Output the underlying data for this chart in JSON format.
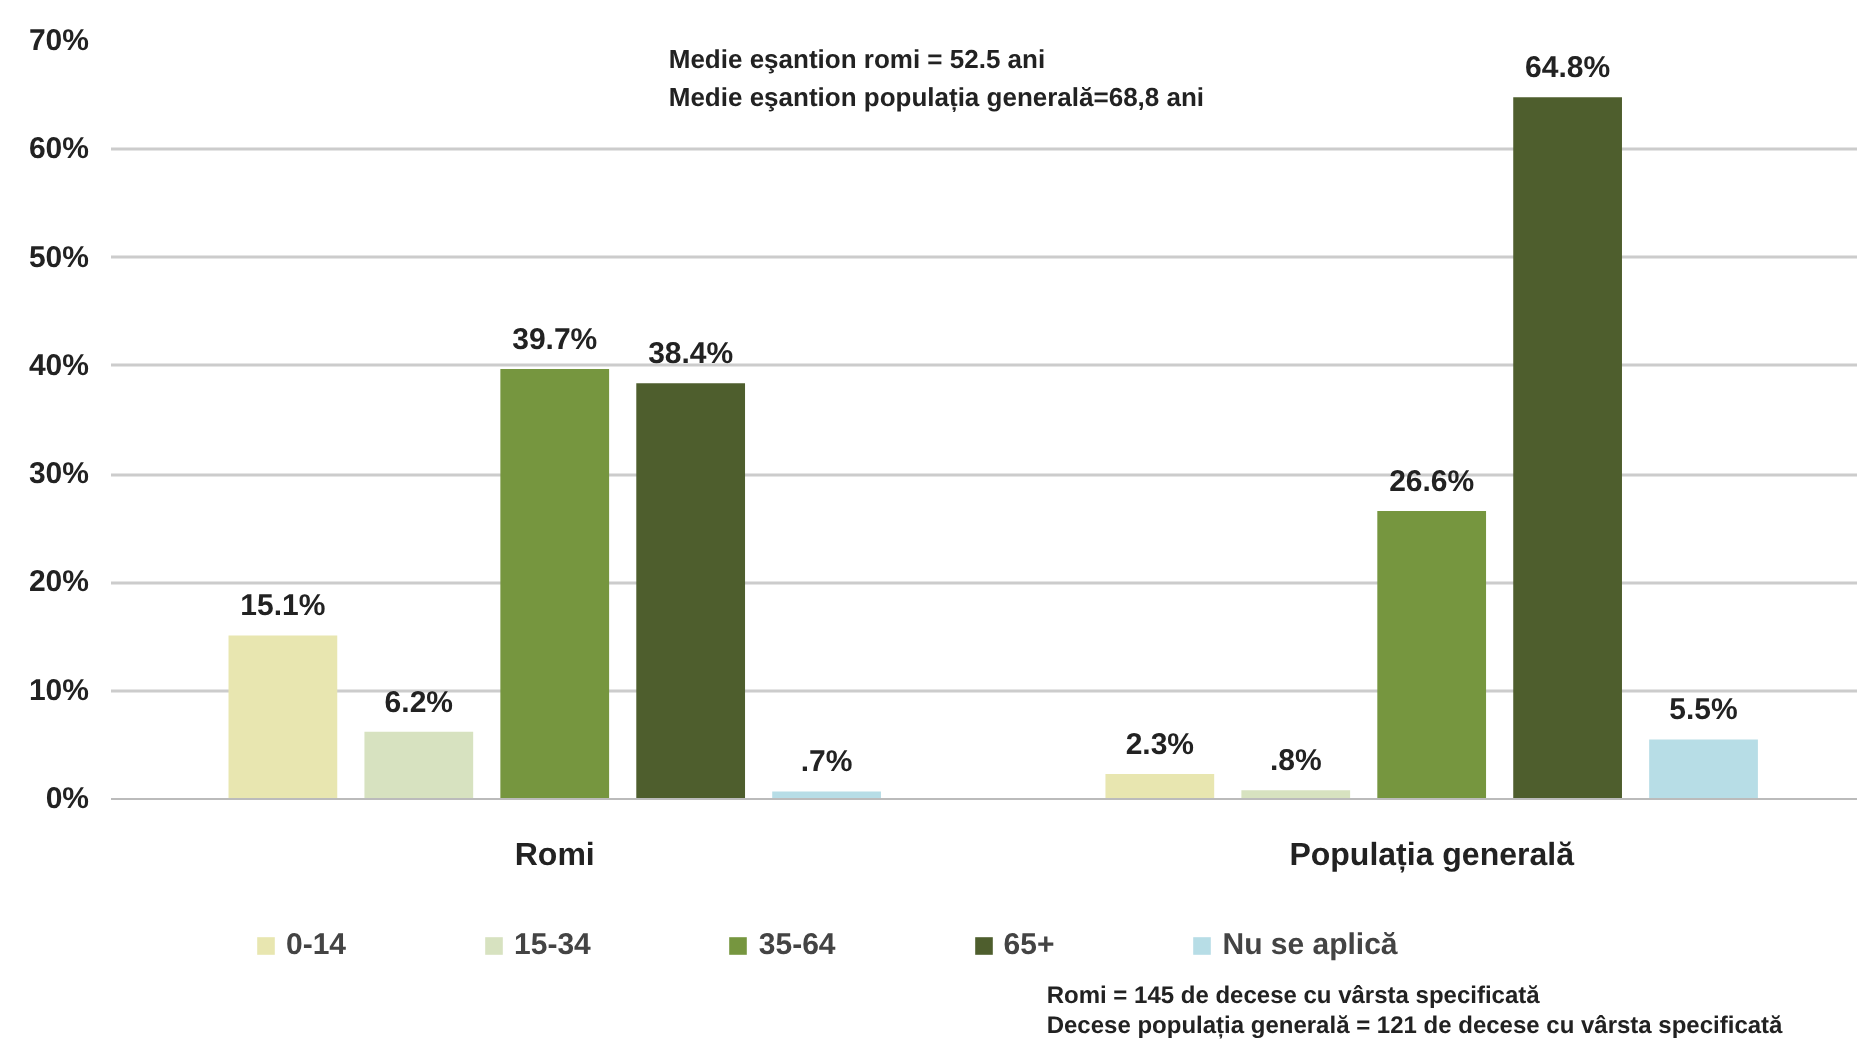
{
  "chart_data": {
    "type": "bar",
    "categories": [
      "Romi",
      "Populația generală"
    ],
    "series": [
      {
        "name": "0-14",
        "color": "#e8e6b0",
        "values": [
          15.1,
          2.3
        ],
        "value_labels": [
          "15.1%",
          "2.3%"
        ]
      },
      {
        "name": "15-34",
        "color": "#d7e2c0",
        "values": [
          6.2,
          0.8
        ],
        "value_labels": [
          "6.2%",
          ".8%"
        ]
      },
      {
        "name": "35-64",
        "color": "#76963f",
        "values": [
          39.7,
          26.6
        ],
        "value_labels": [
          "39.7%",
          "26.6%"
        ]
      },
      {
        "name": "65+",
        "color": "#4e5e2d",
        "values": [
          38.4,
          64.8
        ],
        "value_labels": [
          "38.4%",
          "64.8%"
        ]
      },
      {
        "name": "Nu se aplică",
        "color": "#b7dde6",
        "values": [
          0.7,
          5.5
        ],
        "value_labels": [
          ".7%",
          "5.5%"
        ]
      }
    ],
    "ylim": [
      0,
      70
    ],
    "yticks": [
      {
        "value": 0,
        "label": "0%"
      },
      {
        "value": 10,
        "label": "10%"
      },
      {
        "value": 20,
        "label": "20%"
      },
      {
        "value": 30,
        "label": "30%"
      },
      {
        "value": 40,
        "label": "40%"
      },
      {
        "value": 50,
        "label": "50%"
      },
      {
        "value": 60,
        "label": "60%"
      },
      {
        "value": 70,
        "label": "70%"
      }
    ],
    "grid": "y",
    "legend": "bottom",
    "annotations": [
      "Medie eşantion romi = 52.5 ani",
      "Medie eşantion populația generală=68,8 ani",
      "Romi = 145 de decese cu vârsta specificată",
      "Decese populația generală = 121 de decese cu vârsta specificată"
    ]
  }
}
